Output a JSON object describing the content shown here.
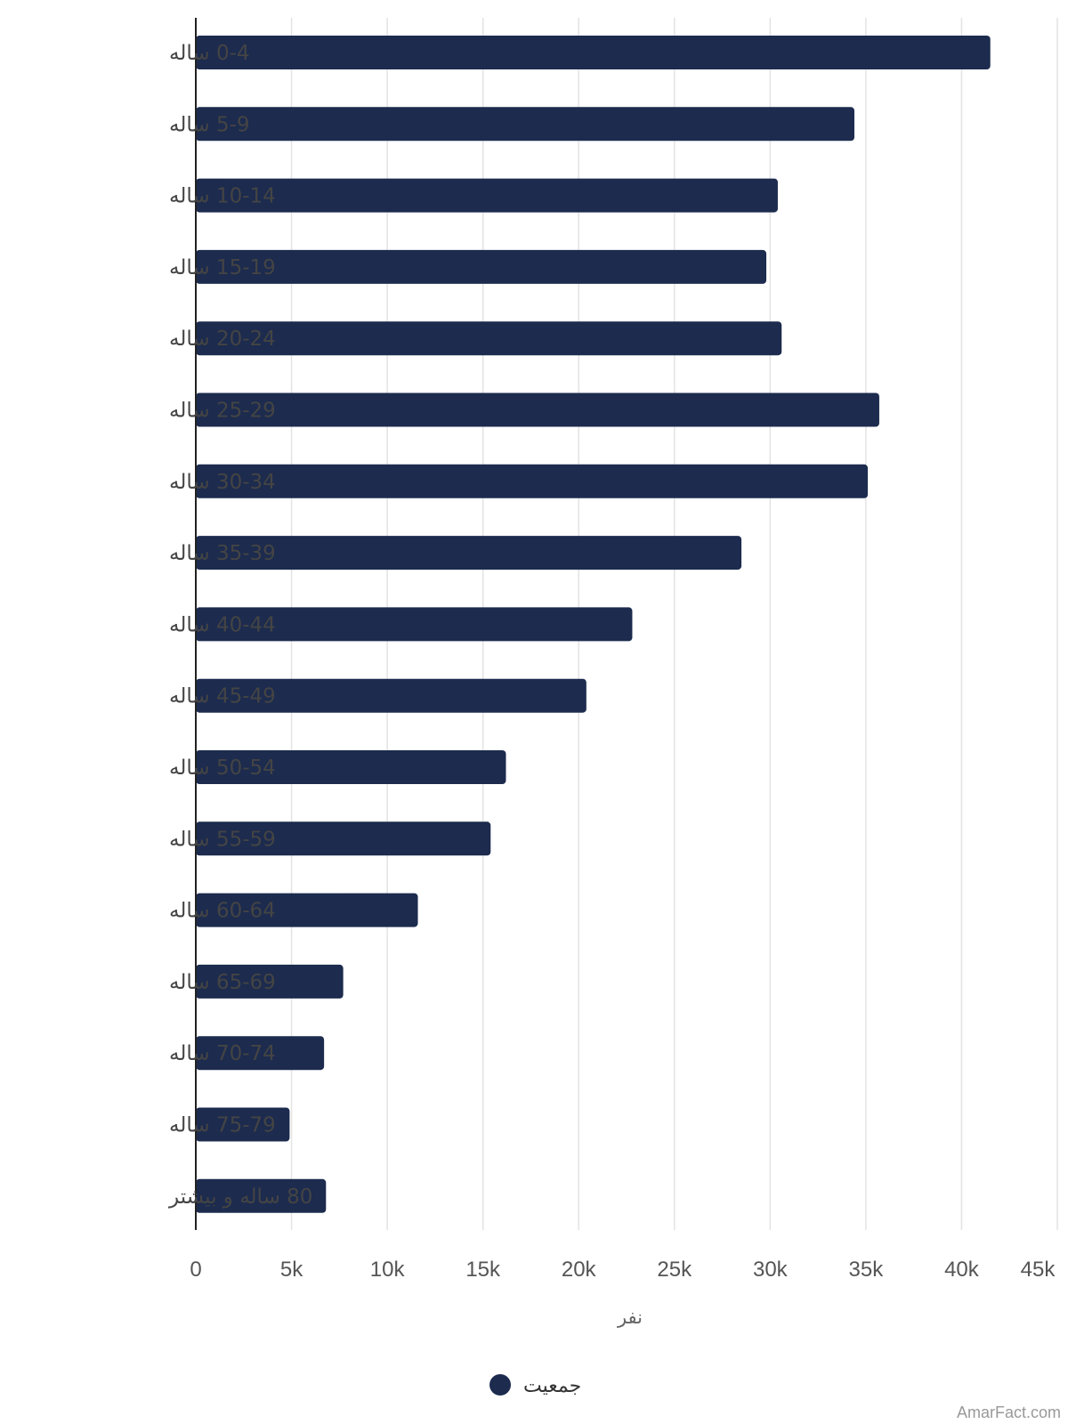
{
  "chart_data": {
    "type": "bar",
    "orientation": "horizontal",
    "categories": [
      "0-4 ساله",
      "5-9 ساله",
      "10-14 ساله",
      "15-19 ساله",
      "20-24 ساله",
      "25-29 ساله",
      "30-34 ساله",
      "35-39 ساله",
      "40-44 ساله",
      "45-49 ساله",
      "50-54 ساله",
      "55-59 ساله",
      "60-64 ساله",
      "65-69 ساله",
      "70-74 ساله",
      "75-79 ساله",
      "80 ساله و بیشتر"
    ],
    "series": [
      {
        "name": "جمعیت",
        "color": "#1c2b4e",
        "values": [
          41500,
          34400,
          30400,
          29800,
          30600,
          35700,
          35100,
          28500,
          22800,
          20400,
          16200,
          15400,
          11600,
          7700,
          6700,
          4900,
          6800
        ]
      }
    ],
    "xlim": [
      0,
      45000
    ],
    "x_ticks": [
      0,
      5000,
      10000,
      15000,
      20000,
      25000,
      30000,
      35000,
      40000,
      45000
    ],
    "x_tick_labels": [
      "0",
      "5k",
      "10k",
      "15k",
      "20k",
      "25k",
      "30k",
      "35k",
      "40k",
      "45k"
    ],
    "xlabel": "نفر",
    "ylabel": "",
    "title": "",
    "grid": "vertical",
    "legend": {
      "position": "bottom-center",
      "label": "جمعیت"
    }
  },
  "footer": {
    "watermark": "AmarFact.com"
  }
}
